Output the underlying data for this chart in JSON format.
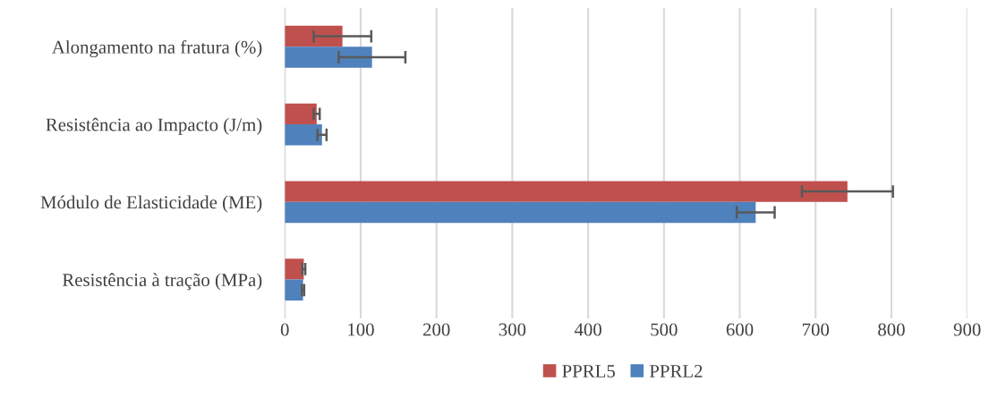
{
  "chart_data": {
    "type": "bar",
    "orientation": "horizontal",
    "categories": [
      "Alongamento na fratura (%)",
      "Resistência ao Impacto (J/m)",
      "Módulo de Elasticidade (ME)",
      "Resistência à tração (MPa)"
    ],
    "series": [
      {
        "name": "PPRL5",
        "color": "#c0504d",
        "values": [
          76,
          42,
          742,
          25
        ],
        "errors": [
          38,
          4,
          60,
          2
        ]
      },
      {
        "name": "PPRL2",
        "color": "#4f81bd",
        "values": [
          115,
          49,
          621,
          24
        ],
        "errors": [
          44,
          6,
          25,
          1.5
        ]
      }
    ],
    "xlim": [
      0,
      900
    ],
    "xticks": [
      0,
      100,
      200,
      300,
      400,
      500,
      600,
      700,
      800,
      900
    ],
    "grid": "x",
    "legend": "bottom"
  }
}
